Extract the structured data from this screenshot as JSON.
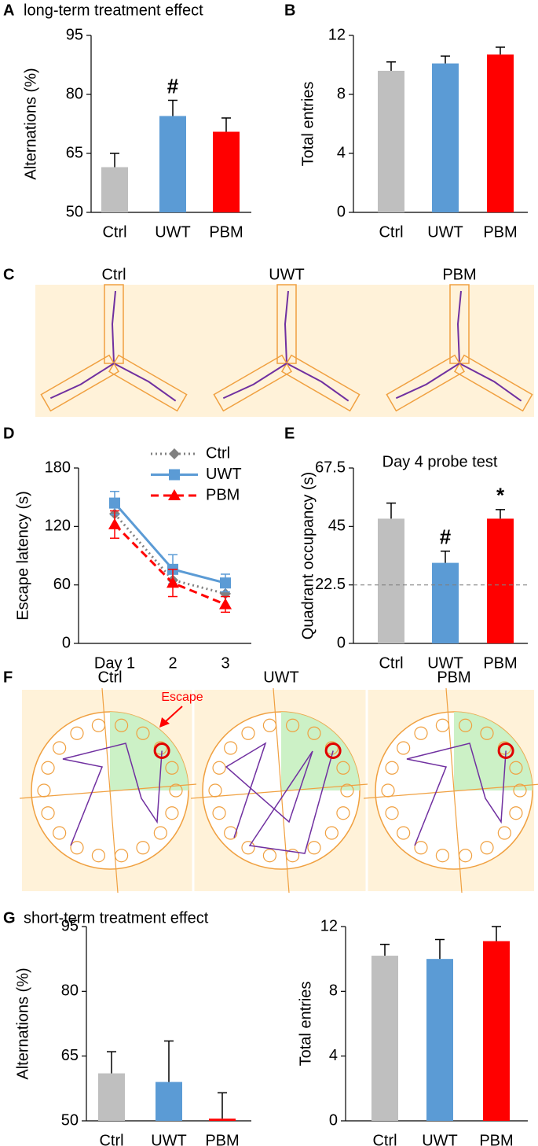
{
  "chart_data": [
    {
      "panel": "A",
      "title": "long-term treatment effect",
      "type": "bar",
      "y_label": "Alternations (%)",
      "categories": [
        "Ctrl",
        "UWT",
        "PBM"
      ],
      "values": [
        61.5,
        74.5,
        70.5
      ],
      "errors": [
        3.5,
        4,
        3.5
      ],
      "colors": [
        "#bfbfbf",
        "#5b9bd5",
        "#ff0000"
      ],
      "ylim": [
        50,
        95
      ],
      "yticks": [
        50,
        65,
        80,
        95
      ],
      "bar_labels": [
        null,
        "#",
        null
      ]
    },
    {
      "panel": "B",
      "type": "bar",
      "y_label": "Total entries",
      "categories": [
        "Ctrl",
        "UWT",
        "PBM"
      ],
      "values": [
        9.6,
        10.1,
        10.7
      ],
      "errors": [
        0.6,
        0.5,
        0.5
      ],
      "colors": [
        "#bfbfbf",
        "#5b9bd5",
        "#ff0000"
      ],
      "ylim": [
        0,
        12
      ],
      "yticks": [
        0,
        4,
        8,
        12
      ]
    },
    {
      "panel": "D",
      "type": "line",
      "y_label": "Escape latency (s)",
      "categories": [
        "Day 1",
        "2",
        "3"
      ],
      "ylim": [
        0,
        180
      ],
      "yticks": [
        0,
        60,
        120,
        180
      ],
      "series": [
        {
          "name": "Ctrl",
          "color": "#808080",
          "dash": "dotted",
          "marker": "diamond",
          "values": [
            133,
            65,
            51
          ]
        },
        {
          "name": "UWT",
          "color": "#5b9bd5",
          "dash": "solid",
          "marker": "square",
          "values": [
            144,
            76,
            62
          ],
          "errors": [
            12,
            15,
            9
          ]
        },
        {
          "name": "PBM",
          "color": "#ff0000",
          "dash": "dashed",
          "marker": "triangle",
          "values": [
            122,
            62,
            40
          ],
          "errors": [
            14,
            14,
            8
          ]
        }
      ]
    },
    {
      "panel": "E",
      "title": "Day 4 probe test",
      "type": "bar",
      "y_label": "Quadrant occupancy (s)",
      "categories": [
        "Ctrl",
        "UWT",
        "PBM"
      ],
      "values": [
        48,
        31,
        48
      ],
      "errors": [
        6,
        4.5,
        3.5
      ],
      "colors": [
        "#bfbfbf",
        "#5b9bd5",
        "#ff0000"
      ],
      "ylim": [
        0,
        67.5
      ],
      "yticks": [
        0,
        22.5,
        45,
        67.5
      ],
      "reference_line": 22.5,
      "bar_labels": [
        null,
        "#",
        "*"
      ]
    },
    {
      "panel": "G",
      "title": "short-term treatment effect",
      "type": "bar",
      "y_label": "Alternations (%)",
      "categories": [
        "Ctrl",
        "UWT",
        "PBM"
      ],
      "values": [
        61,
        59,
        50.5
      ],
      "errors": [
        5,
        9.5,
        6
      ],
      "colors": [
        "#bfbfbf",
        "#5b9bd5",
        "#ff0000"
      ],
      "ylim": [
        50,
        95
      ],
      "yticks": [
        50,
        65,
        80,
        95
      ]
    },
    {
      "type": "bar",
      "y_label": "Total entries",
      "categories": [
        "Ctrl",
        "UWT",
        "PBM"
      ],
      "values": [
        10.2,
        10.0,
        11.1
      ],
      "errors": [
        0.7,
        1.2,
        0.9
      ],
      "colors": [
        "#bfbfbf",
        "#5b9bd5",
        "#ff0000"
      ],
      "ylim": [
        0,
        12
      ],
      "yticks": [
        0,
        4,
        8,
        12
      ]
    }
  ],
  "image_panels": [
    {
      "panel": "C",
      "captions": [
        "Ctrl",
        "UWT",
        "PBM"
      ]
    },
    {
      "panel": "F",
      "captions": [
        "Ctrl",
        "UWT",
        "PBM"
      ],
      "annotation": "Escape"
    }
  ]
}
